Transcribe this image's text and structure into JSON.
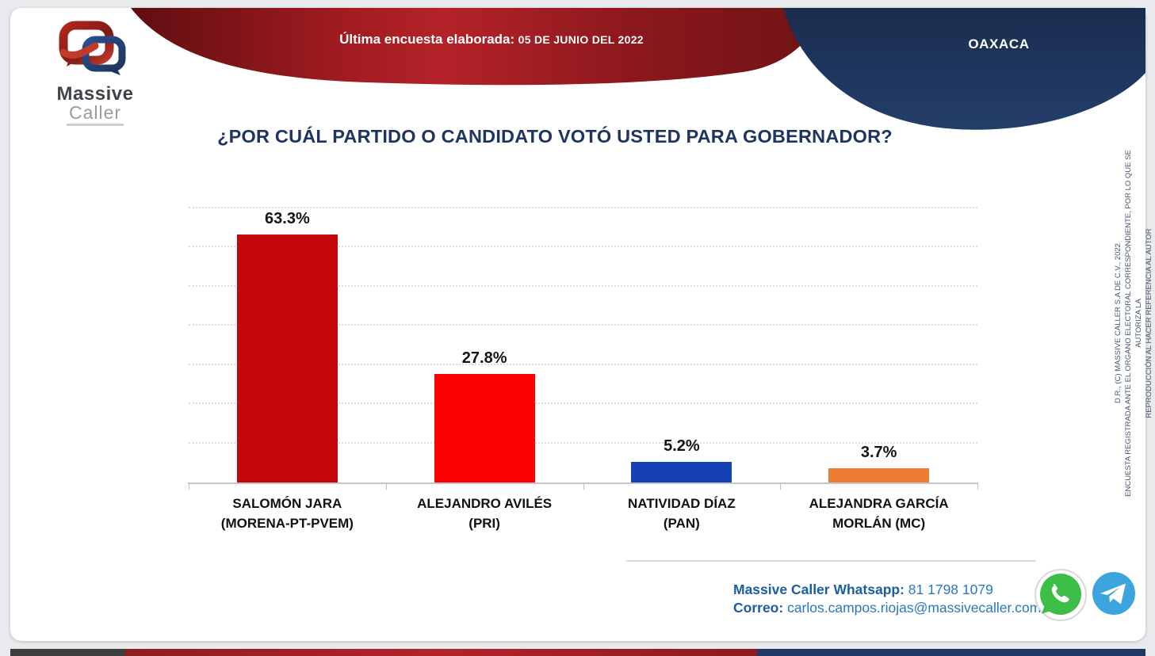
{
  "banner": {
    "label": "Última encuesta elaborada:",
    "date": "05 DE JUNIO DEL 2022",
    "region": "OAXACA"
  },
  "logo": {
    "word1": "Massive",
    "word2": "Caller"
  },
  "title": "¿POR CUÁL PARTIDO O CANDIDATO VOTÓ USTED PARA GOBERNADOR?",
  "chart_data": {
    "type": "bar",
    "title": "¿POR CUÁL PARTIDO O CANDIDATO VOTÓ USTED PARA GOBERNADOR?",
    "categories": [
      "SALOMÓN JARA (MORENA-PT-PVEM)",
      "ALEJANDRO AVILÉS (PRI)",
      "NATIVIDAD DÍAZ (PAN)",
      "ALEJANDRA GARCÍA MORLÁN (MC)"
    ],
    "category_lines": [
      [
        "SALOMÓN JARA",
        "(MORENA-PT-PVEM)"
      ],
      [
        "ALEJANDRO AVILÉS",
        "(PRI)"
      ],
      [
        "NATIVIDAD DÍAZ",
        "(PAN)"
      ],
      [
        "ALEJANDRA GARCÍA",
        "MORLÁN (MC)"
      ]
    ],
    "values": [
      63.3,
      27.8,
      5.2,
      3.7
    ],
    "value_labels": [
      "63.3%",
      "27.8%",
      "5.2%",
      "3.7%"
    ],
    "bar_colors": [
      "#C3070C",
      "#FE0202",
      "#1641B5",
      "#EC7D33"
    ],
    "xlabel": "",
    "ylabel": "",
    "ylim": [
      0,
      70
    ],
    "gridline_step": 10,
    "grid": "horizontal-dotted",
    "legend": "none"
  },
  "disclaimer": {
    "lines": [
      "D.R., (C) MASSIVE CALLER S.A DE C.V., 2022",
      "ENCUESTA REGISTRADA ANTE EL ORGANO ELECTORAL CORRESPONDIENTE, POR LO QUE SE AUTORIZA LA",
      "REPRODUCCIÓN AL HACER REFERENCIA AL AUTOR"
    ]
  },
  "contact": {
    "whatsapp_label": "Massive Caller Whatsapp:",
    "whatsapp_number": "81 1798 1079",
    "email_label": "Correo:",
    "email": "carlos.campos.riojas@massivecaller.com"
  },
  "icons": {
    "whatsapp": "whatsapp-icon",
    "telegram": "telegram-icon"
  },
  "colors": {
    "navy": "#1F3864",
    "banner_red": "#B42329",
    "page_bg": "#E8EAED",
    "contact_blue": "#2B77C0",
    "disclaimer_gray": "#44546A"
  }
}
